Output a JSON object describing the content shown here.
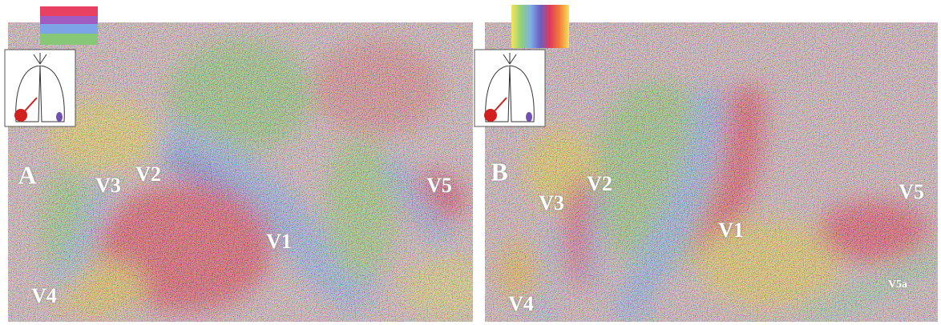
{
  "panels": [
    {
      "label": "A",
      "areas": [
        "V3",
        "V2",
        "V1",
        "V5",
        "V4"
      ]
    },
    {
      "label": "B",
      "areas": [
        "V3",
        "V2",
        "V1",
        "V5",
        "V4",
        "V5a"
      ]
    }
  ]
}
